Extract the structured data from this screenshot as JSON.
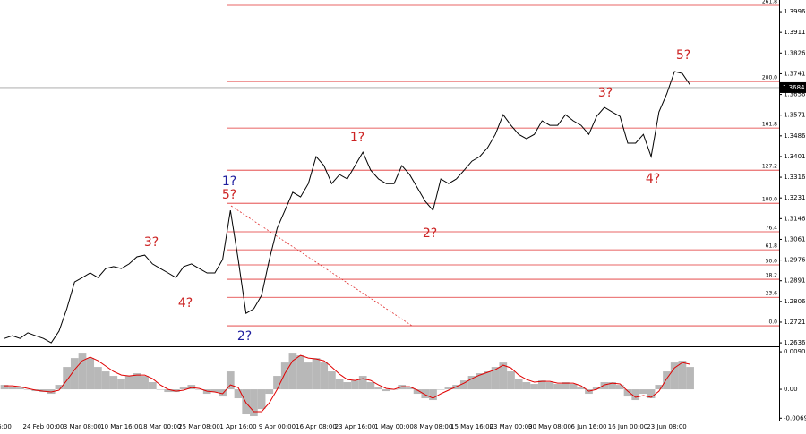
{
  "chart_data": [
    {
      "type": "line",
      "categories": [
        "6:00",
        null,
        null,
        null,
        null,
        "24 Feb 00:00",
        null,
        null,
        null,
        null,
        "3 Mar 08:00",
        null,
        null,
        null,
        null,
        "10 Mar 16:00",
        null,
        null,
        null,
        null,
        "18 Mar 00:00",
        null,
        null,
        null,
        null,
        "25 Mar 08:00",
        null,
        null,
        null,
        null,
        "1 Apr 16:00",
        null,
        null,
        null,
        null,
        "9 Apr 00:00",
        null,
        null,
        null,
        null,
        "16 Apr 08:00",
        null,
        null,
        null,
        null,
        "23 Apr 16:00",
        null,
        null,
        null,
        null,
        "1 May 00:00",
        null,
        null,
        null,
        null,
        "8 May 08:00",
        null,
        null,
        null,
        null,
        "15 May 16:00",
        null,
        null,
        null,
        null,
        "23 May 00:00",
        null,
        null,
        null,
        null,
        "30 May 08:00",
        null,
        null,
        null,
        null,
        "6 Jun 16:00",
        null,
        null,
        null,
        null,
        "16 Jun 00:00",
        null,
        null,
        null,
        null,
        "23 Jun 08:00",
        null,
        null,
        null
      ],
      "series": [
        {
          "color": "#000000",
          "values": [
            1.2654,
            1.2665,
            1.2654,
            1.2677,
            1.2665,
            1.2654,
            1.2636,
            1.2684,
            1.2776,
            1.2886,
            1.2904,
            1.2923,
            1.2904,
            1.2941,
            1.2949,
            1.2941,
            1.296,
            1.2989,
            1.2996,
            1.296,
            1.2941,
            1.2923,
            1.2904,
            1.2949,
            1.296,
            1.2941,
            1.2923,
            1.2923,
            1.2978,
            1.318,
            1.2978,
            1.2757,
            1.2776,
            1.2831,
            1.2978,
            1.3107,
            1.318,
            1.3254,
            1.3235,
            1.329,
            1.3401,
            1.3364,
            1.329,
            1.3327,
            1.3309,
            1.3364,
            1.3419,
            1.3345,
            1.3309,
            1.329,
            1.329,
            1.3364,
            1.3327,
            1.3272,
            1.3217,
            1.318,
            1.3309,
            1.329,
            1.3309,
            1.3345,
            1.3382,
            1.3401,
            1.3437,
            1.3492,
            1.3573,
            1.3529,
            1.3492,
            1.3474,
            1.3492,
            1.3548,
            1.3529,
            1.3529,
            1.3573,
            1.3548,
            1.3529,
            1.3492,
            1.3566,
            1.3603,
            1.3584,
            1.3566,
            1.3456,
            1.3456,
            1.3492,
            1.3401,
            1.3584,
            1.3658,
            1.375,
            1.3742,
            1.3695
          ]
        }
      ],
      "ylim": [
        1.2629,
        1.4044
      ],
      "yticks": [
        1.3996,
        1.3911,
        1.3826,
        1.3741,
        1.3656,
        1.3571,
        1.3486,
        1.3401,
        1.3316,
        1.3231,
        1.3146,
        1.3061,
        1.2976,
        1.2891,
        1.2806,
        1.2721,
        1.2636
      ],
      "current_price": 1.3684,
      "fib_color": "#e03030",
      "fib_levels": [
        {
          "value": 1.4022,
          "label": "261.8"
        },
        {
          "value": 1.3709,
          "label": "200.0"
        },
        {
          "value": 1.3518,
          "label": "161.8"
        },
        {
          "value": 1.3345,
          "label": "127.2"
        },
        {
          "value": 1.3209,
          "label": "100.0"
        },
        {
          "value": 1.3092,
          "label": "76.4"
        },
        {
          "value": 1.3018,
          "label": "61.8"
        },
        {
          "value": 1.2956,
          "label": "50.0"
        },
        {
          "value": 1.2897,
          "label": "38.2"
        },
        {
          "value": 1.2823,
          "label": "23.6"
        },
        {
          "value": 1.2706,
          "label": "0.0"
        }
      ],
      "annotations": [
        {
          "text": "5?",
          "color": "#cc2222"
        },
        {
          "text": "3?",
          "color": "#cc2222"
        },
        {
          "text": "4?",
          "color": "#cc2222"
        },
        {
          "text": "1?",
          "color": "#cc2222"
        },
        {
          "text": "2?",
          "color": "#cc2222"
        },
        {
          "text": "1?",
          "color": "#1f1f9f"
        },
        {
          "text": "5?",
          "color": "#cc2222"
        },
        {
          "text": "3?",
          "color": "#cc2222"
        },
        {
          "text": "4?",
          "color": "#cc2222"
        },
        {
          "text": "2?",
          "color": "#1f1f9f"
        }
      ]
    },
    {
      "type": "macd",
      "series": [
        {
          "color": "#b8b8b8",
          "values": [
            0.00107,
            0.00064,
            0.00043,
            0,
            -0.00043,
            -0.00064,
            -0.00107,
            0.00107,
            0.00536,
            0.0075,
            0.00858,
            0.0075,
            0.00536,
            0.00429,
            0.00322,
            0.00257,
            0.00322,
            0.00386,
            0.00322,
            0.00172,
            0,
            -0.00064,
            -0.00064,
            0.00043,
            0.00107,
            0,
            -0.00107,
            -0.00064,
            -0.00172,
            0.00429,
            -0.00214,
            -0.006,
            -0.00643,
            -0.00472,
            -0.00107,
            0.00322,
            0.00643,
            0.00858,
            0.00815,
            0.00643,
            0.0075,
            0.00643,
            0.00429,
            0.00257,
            0.00172,
            0.00214,
            0.00322,
            0.00172,
            0.00043,
            -0.00043,
            0,
            0.00107,
            0.00043,
            -0.00107,
            -0.00214,
            -0.00257,
            0,
            0.00043,
            0.00107,
            0.00214,
            0.00322,
            0.00386,
            0.00429,
            0.00536,
            0.00643,
            0.00429,
            0.00257,
            0.00172,
            0.00129,
            0.00214,
            0.00172,
            0.00129,
            0.00172,
            0.00129,
            0.00043,
            -0.00107,
            0.00043,
            0.00172,
            0.00172,
            0.00107,
            -0.00172,
            -0.00257,
            -0.00107,
            -0.00214,
            0.00107,
            0.00429,
            0.00643,
            0.00686,
            0.00536
          ]
        },
        {
          "color": "#e00000",
          "values": [
            0.00086,
            0.00086,
            0.00064,
            0.00021,
            -0.00021,
            -0.00043,
            -0.00064,
            -0.00021,
            0.00214,
            0.00472,
            0.00686,
            0.00772,
            0.00686,
            0.00558,
            0.00429,
            0.00343,
            0.00322,
            0.00343,
            0.00343,
            0.00257,
            0.00107,
            0,
            -0.00043,
            -0.00021,
            0.00043,
            0.00021,
            -0.00043,
            -0.00064,
            -0.00107,
            0.00107,
            0.00043,
            -0.00322,
            -0.00536,
            -0.00536,
            -0.00322,
            0,
            0.00386,
            0.00686,
            0.00815,
            0.0075,
            0.00729,
            0.00686,
            0.00536,
            0.00364,
            0.00236,
            0.00214,
            0.00257,
            0.00214,
            0.00107,
            0.00021,
            0,
            0.00064,
            0.00064,
            -0.00021,
            -0.00129,
            -0.00214,
            -0.00107,
            -0.00021,
            0.00064,
            0.0015,
            0.00257,
            0.00343,
            0.00407,
            0.00472,
            0.00579,
            0.00515,
            0.00343,
            0.00236,
            0.00172,
            0.00193,
            0.00193,
            0.0015,
            0.0015,
            0.0015,
            0.00086,
            -0.00043,
            0,
            0.00107,
            0.0015,
            0.00129,
            -0.00043,
            -0.00193,
            -0.0015,
            -0.00193,
            -0.00043,
            0.00257,
            0.00515,
            0.00643,
            0.006
          ]
        }
      ],
      "ylim": [
        -0.0075,
        0.0101
      ],
      "yticks": [
        0.00901,
        {
          "value": 0,
          "label": "0.00"
        },
        -0.00692
      ]
    }
  ]
}
